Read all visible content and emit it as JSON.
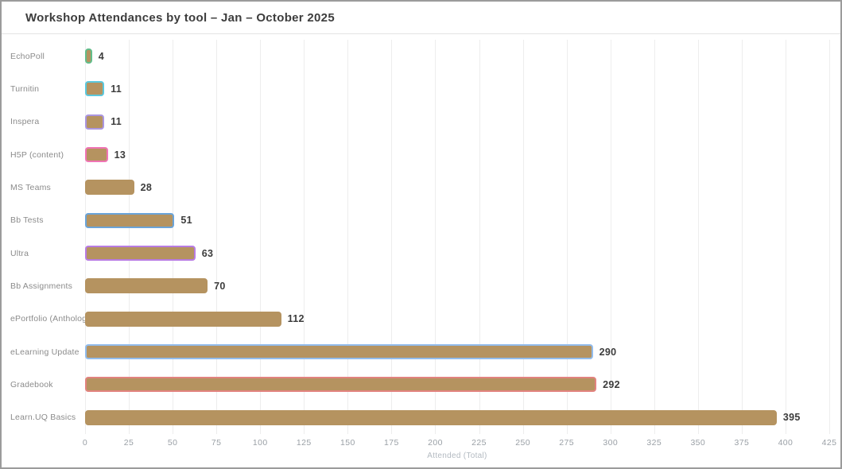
{
  "chart_data": {
    "type": "bar",
    "orientation": "horizontal",
    "title": "Workshop Attendances by tool – Jan – October 2025",
    "xlabel": "Attended (Total)",
    "ylabel": "",
    "xlim": [
      0,
      425
    ],
    "xticks": [
      0,
      25,
      50,
      75,
      100,
      125,
      150,
      175,
      200,
      225,
      250,
      275,
      300,
      325,
      350,
      375,
      400,
      425
    ],
    "grid": true,
    "legend": "none",
    "categories": [
      "EchoPoll",
      "Turnitin",
      "Inspera",
      "H5P (content)",
      "MS Teams",
      "Bb Tests",
      "Ultra",
      "Bb Assignments",
      "ePortfolio (Anthology",
      "eLearning Update",
      "Gradebook",
      "Learn.UQ Basics"
    ],
    "values": [
      4,
      11,
      11,
      13,
      28,
      51,
      63,
      70,
      112,
      290,
      292,
      395
    ],
    "data_labels": [
      "4",
      "11",
      "11",
      "13",
      "28",
      "51",
      "63",
      "70",
      "112",
      "290",
      "292",
      "395"
    ],
    "bar_fill_color": "#b59360",
    "bar_border_colors": [
      "#62bd8a",
      "#5bc8dd",
      "#ab96e0",
      "#f075b5",
      "#b59360",
      "#6ba4d9",
      "#b87ce3",
      "#b59360",
      "#b59360",
      "#92bcec",
      "#e2837f",
      "#b59360"
    ],
    "colors": {
      "title_text": "#3d3d3d",
      "category_text": "#8b8b8b",
      "value_text": "#3c3c3c",
      "tick_text": "#9aa0a6",
      "axis_label_text": "#b3bac1",
      "gridline": "#ededed",
      "window_border": "#9b9b9b"
    }
  }
}
